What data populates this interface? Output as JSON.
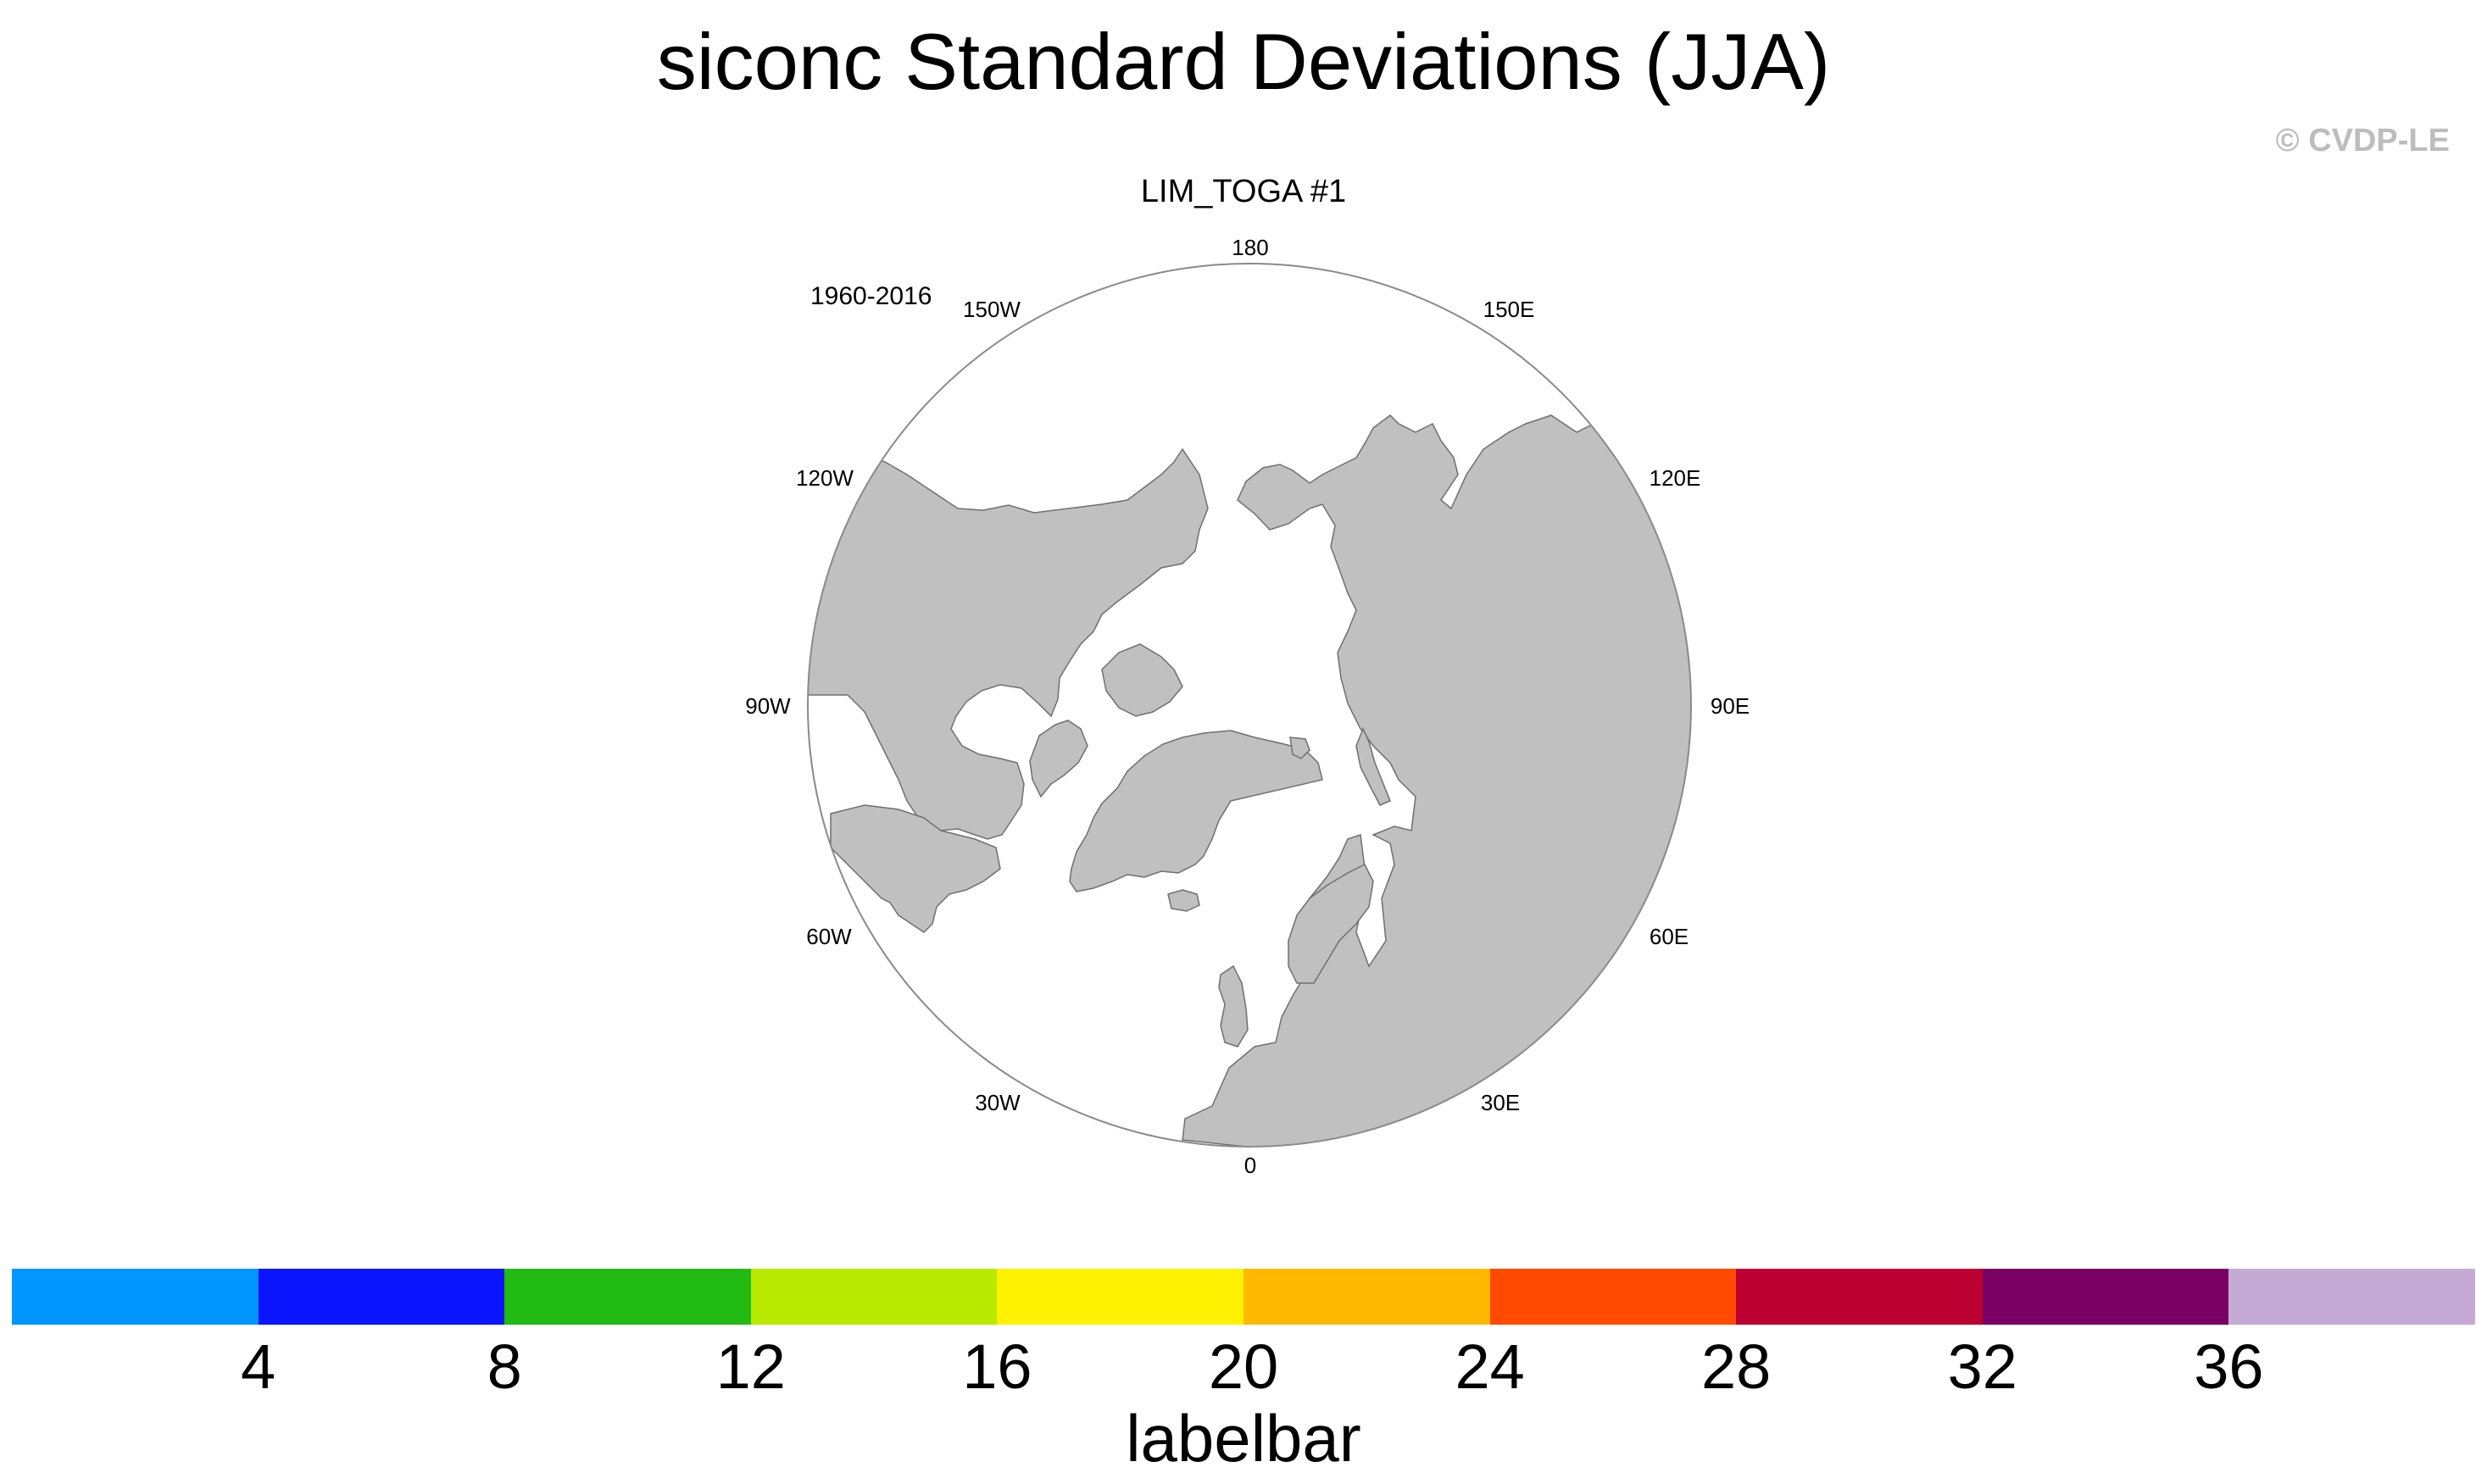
{
  "title": "siconc Standard Deviations (JJA)",
  "copyright": "© CVDP-LE",
  "panel": {
    "title": "LIM_TOGA #1",
    "period": "1960-2016"
  },
  "map": {
    "projection": "north polar stereographic",
    "land_color": "#c0c0c0",
    "ocean_color": "#ffffff",
    "longitude_labels": [
      "180",
      "150E",
      "120E",
      "90E",
      "60E",
      "30E",
      "0",
      "30W",
      "60W",
      "90W",
      "120W",
      "150W"
    ]
  },
  "labelbar": {
    "title": "labelbar",
    "ticks": [
      "4",
      "8",
      "12",
      "16",
      "20",
      "24",
      "28",
      "32",
      "36"
    ],
    "colors": [
      "#0096ff",
      "#0a14ff",
      "#22bb14",
      "#b8ea00",
      "#fff200",
      "#ffb900",
      "#ff4a00",
      "#bd0032",
      "#7a0065",
      "#c6aad6"
    ]
  }
}
